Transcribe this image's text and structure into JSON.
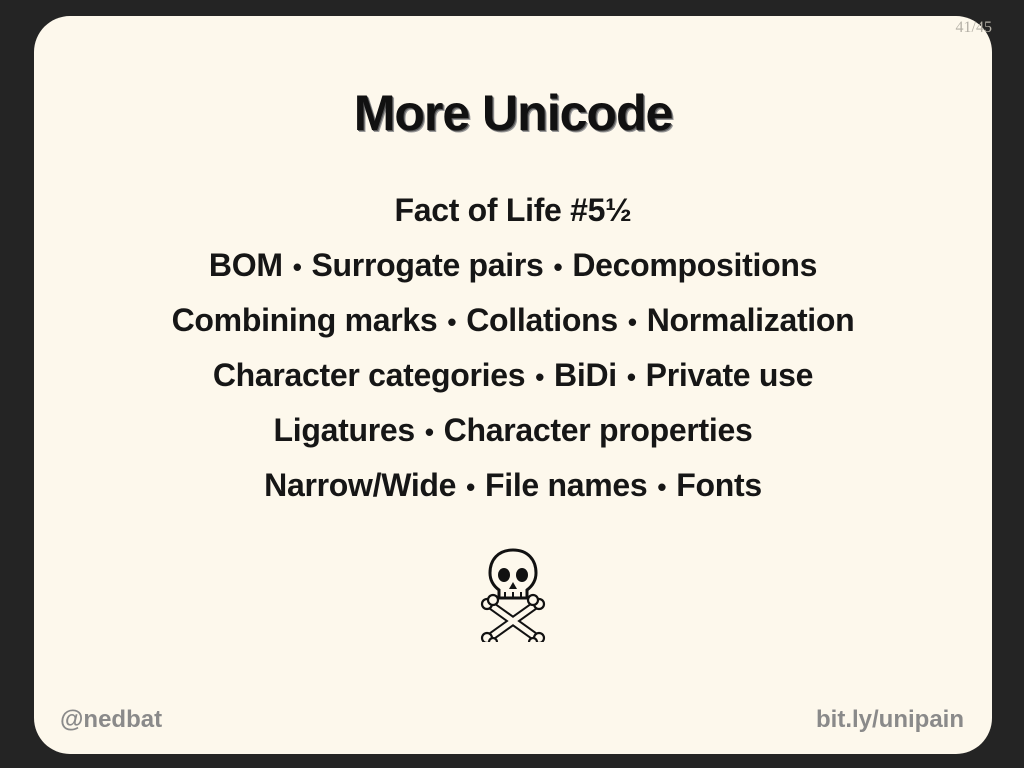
{
  "page_indicator": "41/45",
  "title": "More Unicode",
  "subtitle": "Fact of Life #5½",
  "separator": "•",
  "rows": [
    [
      "BOM",
      "Surrogate pairs",
      "Decompositions"
    ],
    [
      "Combining marks",
      "Collations",
      "Normalization"
    ],
    [
      "Character categories",
      "BiDi",
      "Private use"
    ],
    [
      "Ligatures",
      "Character properties"
    ],
    [
      "Narrow/Wide",
      "File names",
      "Fonts"
    ]
  ],
  "icon": "skull-and-crossbones-icon",
  "footer": {
    "left": "@nedbat",
    "right": "bit.ly/unipain"
  },
  "colors": {
    "background": "#242424",
    "slide": "#fdf8ec",
    "text": "#161616",
    "footer_text": "#8a8a8a"
  }
}
